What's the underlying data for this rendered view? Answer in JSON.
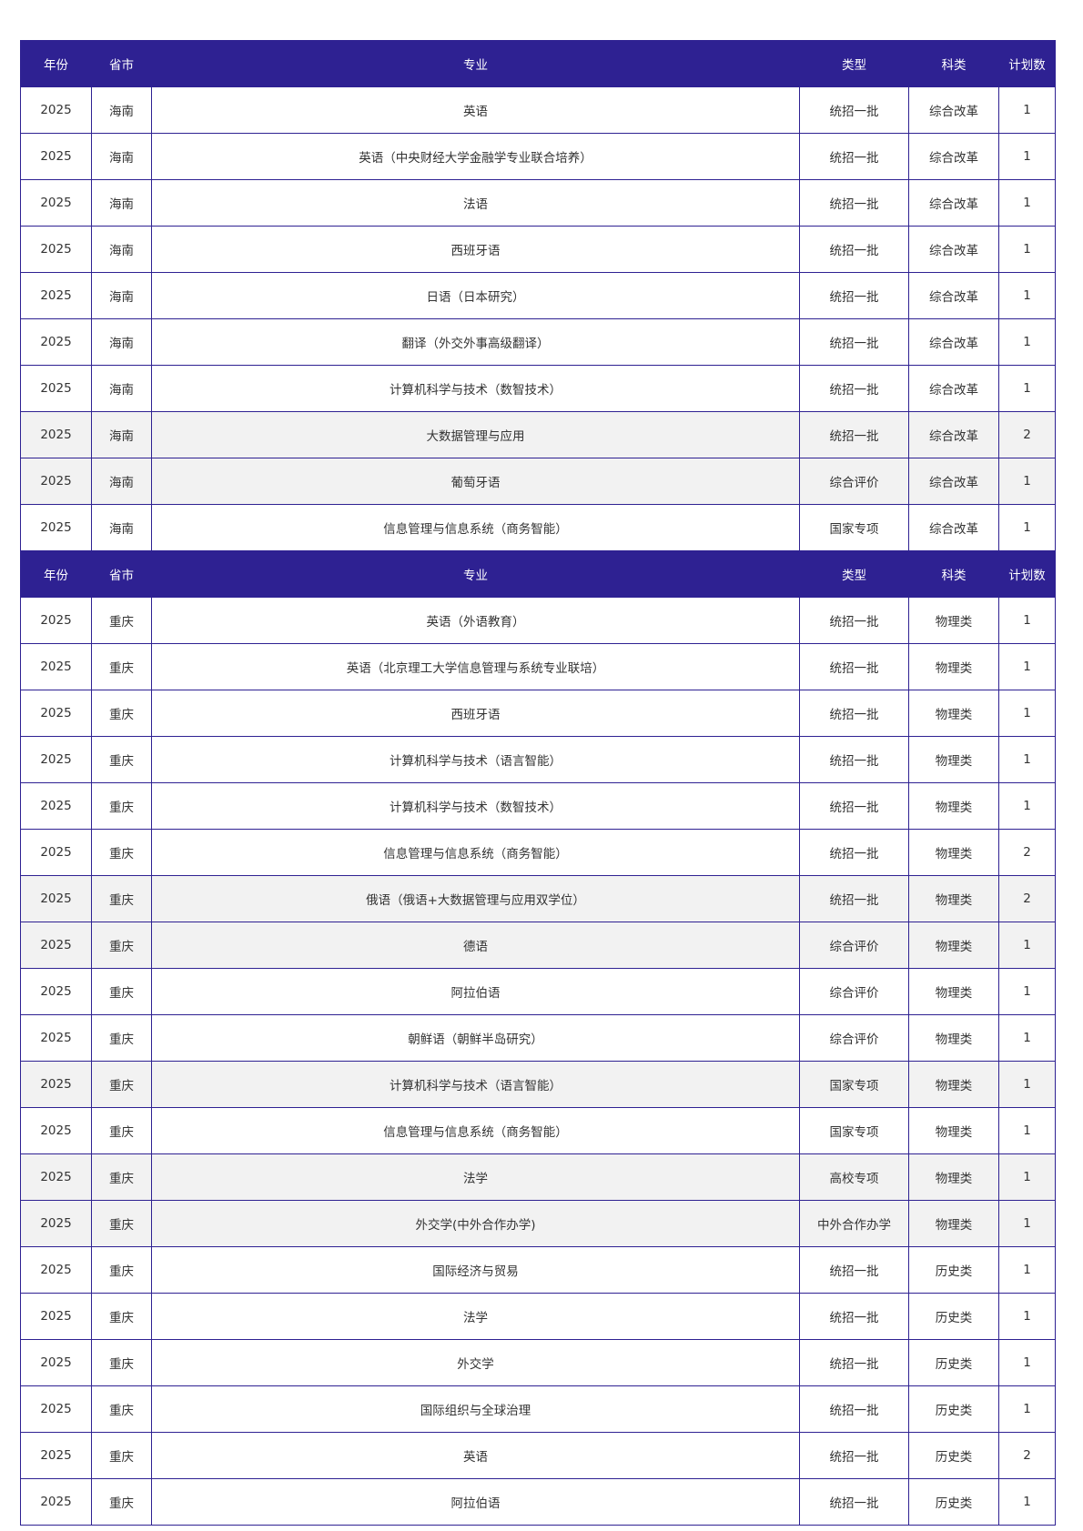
{
  "colors": {
    "header_bg": "#2e2192",
    "border": "#2e2192",
    "alt_row": "#f2f2f2"
  },
  "headers": [
    "年份",
    "省市",
    "专业",
    "类型",
    "科类",
    "计划数"
  ],
  "sections": [
    {
      "rows": [
        {
          "cells": [
            "2025",
            "海南",
            "英语",
            "统招一批",
            "综合改革",
            "1"
          ],
          "gray": false
        },
        {
          "cells": [
            "2025",
            "海南",
            "英语（中央财经大学金融学专业联合培养）",
            "统招一批",
            "综合改革",
            "1"
          ],
          "gray": false
        },
        {
          "cells": [
            "2025",
            "海南",
            "法语",
            "统招一批",
            "综合改革",
            "1"
          ],
          "gray": false
        },
        {
          "cells": [
            "2025",
            "海南",
            "西班牙语",
            "统招一批",
            "综合改革",
            "1"
          ],
          "gray": false
        },
        {
          "cells": [
            "2025",
            "海南",
            "日语（日本研究）",
            "统招一批",
            "综合改革",
            "1"
          ],
          "gray": false
        },
        {
          "cells": [
            "2025",
            "海南",
            "翻译（外交外事高级翻译）",
            "统招一批",
            "综合改革",
            "1"
          ],
          "gray": false
        },
        {
          "cells": [
            "2025",
            "海南",
            "计算机科学与技术（数智技术）",
            "统招一批",
            "综合改革",
            "1"
          ],
          "gray": false
        },
        {
          "cells": [
            "2025",
            "海南",
            "大数据管理与应用",
            "统招一批",
            "综合改革",
            "2"
          ],
          "gray": true
        },
        {
          "cells": [
            "2025",
            "海南",
            "葡萄牙语",
            "综合评价",
            "综合改革",
            "1"
          ],
          "gray": true
        },
        {
          "cells": [
            "2025",
            "海南",
            "信息管理与信息系统（商务智能）",
            "国家专项",
            "综合改革",
            "1"
          ],
          "gray": false
        }
      ]
    },
    {
      "rows": [
        {
          "cells": [
            "2025",
            "重庆",
            "英语（外语教育）",
            "统招一批",
            "物理类",
            "1"
          ],
          "gray": false
        },
        {
          "cells": [
            "2025",
            "重庆",
            "英语（北京理工大学信息管理与系统专业联培）",
            "统招一批",
            "物理类",
            "1"
          ],
          "gray": false
        },
        {
          "cells": [
            "2025",
            "重庆",
            "西班牙语",
            "统招一批",
            "物理类",
            "1"
          ],
          "gray": false
        },
        {
          "cells": [
            "2025",
            "重庆",
            "计算机科学与技术（语言智能）",
            "统招一批",
            "物理类",
            "1"
          ],
          "gray": false
        },
        {
          "cells": [
            "2025",
            "重庆",
            "计算机科学与技术（数智技术）",
            "统招一批",
            "物理类",
            "1"
          ],
          "gray": false
        },
        {
          "cells": [
            "2025",
            "重庆",
            "信息管理与信息系统（商务智能）",
            "统招一批",
            "物理类",
            "2"
          ],
          "gray": false
        },
        {
          "cells": [
            "2025",
            "重庆",
            "俄语（俄语+大数据管理与应用双学位）",
            "统招一批",
            "物理类",
            "2"
          ],
          "gray": true
        },
        {
          "cells": [
            "2025",
            "重庆",
            "德语",
            "综合评价",
            "物理类",
            "1"
          ],
          "gray": true
        },
        {
          "cells": [
            "2025",
            "重庆",
            "阿拉伯语",
            "综合评价",
            "物理类",
            "1"
          ],
          "gray": false
        },
        {
          "cells": [
            "2025",
            "重庆",
            "朝鲜语（朝鲜半岛研究）",
            "综合评价",
            "物理类",
            "1"
          ],
          "gray": false
        },
        {
          "cells": [
            "2025",
            "重庆",
            "计算机科学与技术（语言智能）",
            "国家专项",
            "物理类",
            "1"
          ],
          "gray": true
        },
        {
          "cells": [
            "2025",
            "重庆",
            "信息管理与信息系统（商务智能）",
            "国家专项",
            "物理类",
            "1"
          ],
          "gray": false
        },
        {
          "cells": [
            "2025",
            "重庆",
            "法学",
            "高校专项",
            "物理类",
            "1"
          ],
          "gray": true
        },
        {
          "cells": [
            "2025",
            "重庆",
            "外交学(中外合作办学)",
            "中外合作办学",
            "物理类",
            "1"
          ],
          "gray": true
        },
        {
          "cells": [
            "2025",
            "重庆",
            "国际经济与贸易",
            "统招一批",
            "历史类",
            "1"
          ],
          "gray": false
        },
        {
          "cells": [
            "2025",
            "重庆",
            "法学",
            "统招一批",
            "历史类",
            "1"
          ],
          "gray": false
        },
        {
          "cells": [
            "2025",
            "重庆",
            "外交学",
            "统招一批",
            "历史类",
            "1"
          ],
          "gray": false
        },
        {
          "cells": [
            "2025",
            "重庆",
            "国际组织与全球治理",
            "统招一批",
            "历史类",
            "1"
          ],
          "gray": false
        },
        {
          "cells": [
            "2025",
            "重庆",
            "英语",
            "统招一批",
            "历史类",
            "2"
          ],
          "gray": false
        },
        {
          "cells": [
            "2025",
            "重庆",
            "阿拉伯语",
            "统招一批",
            "历史类",
            "1"
          ],
          "gray": false
        }
      ]
    }
  ]
}
